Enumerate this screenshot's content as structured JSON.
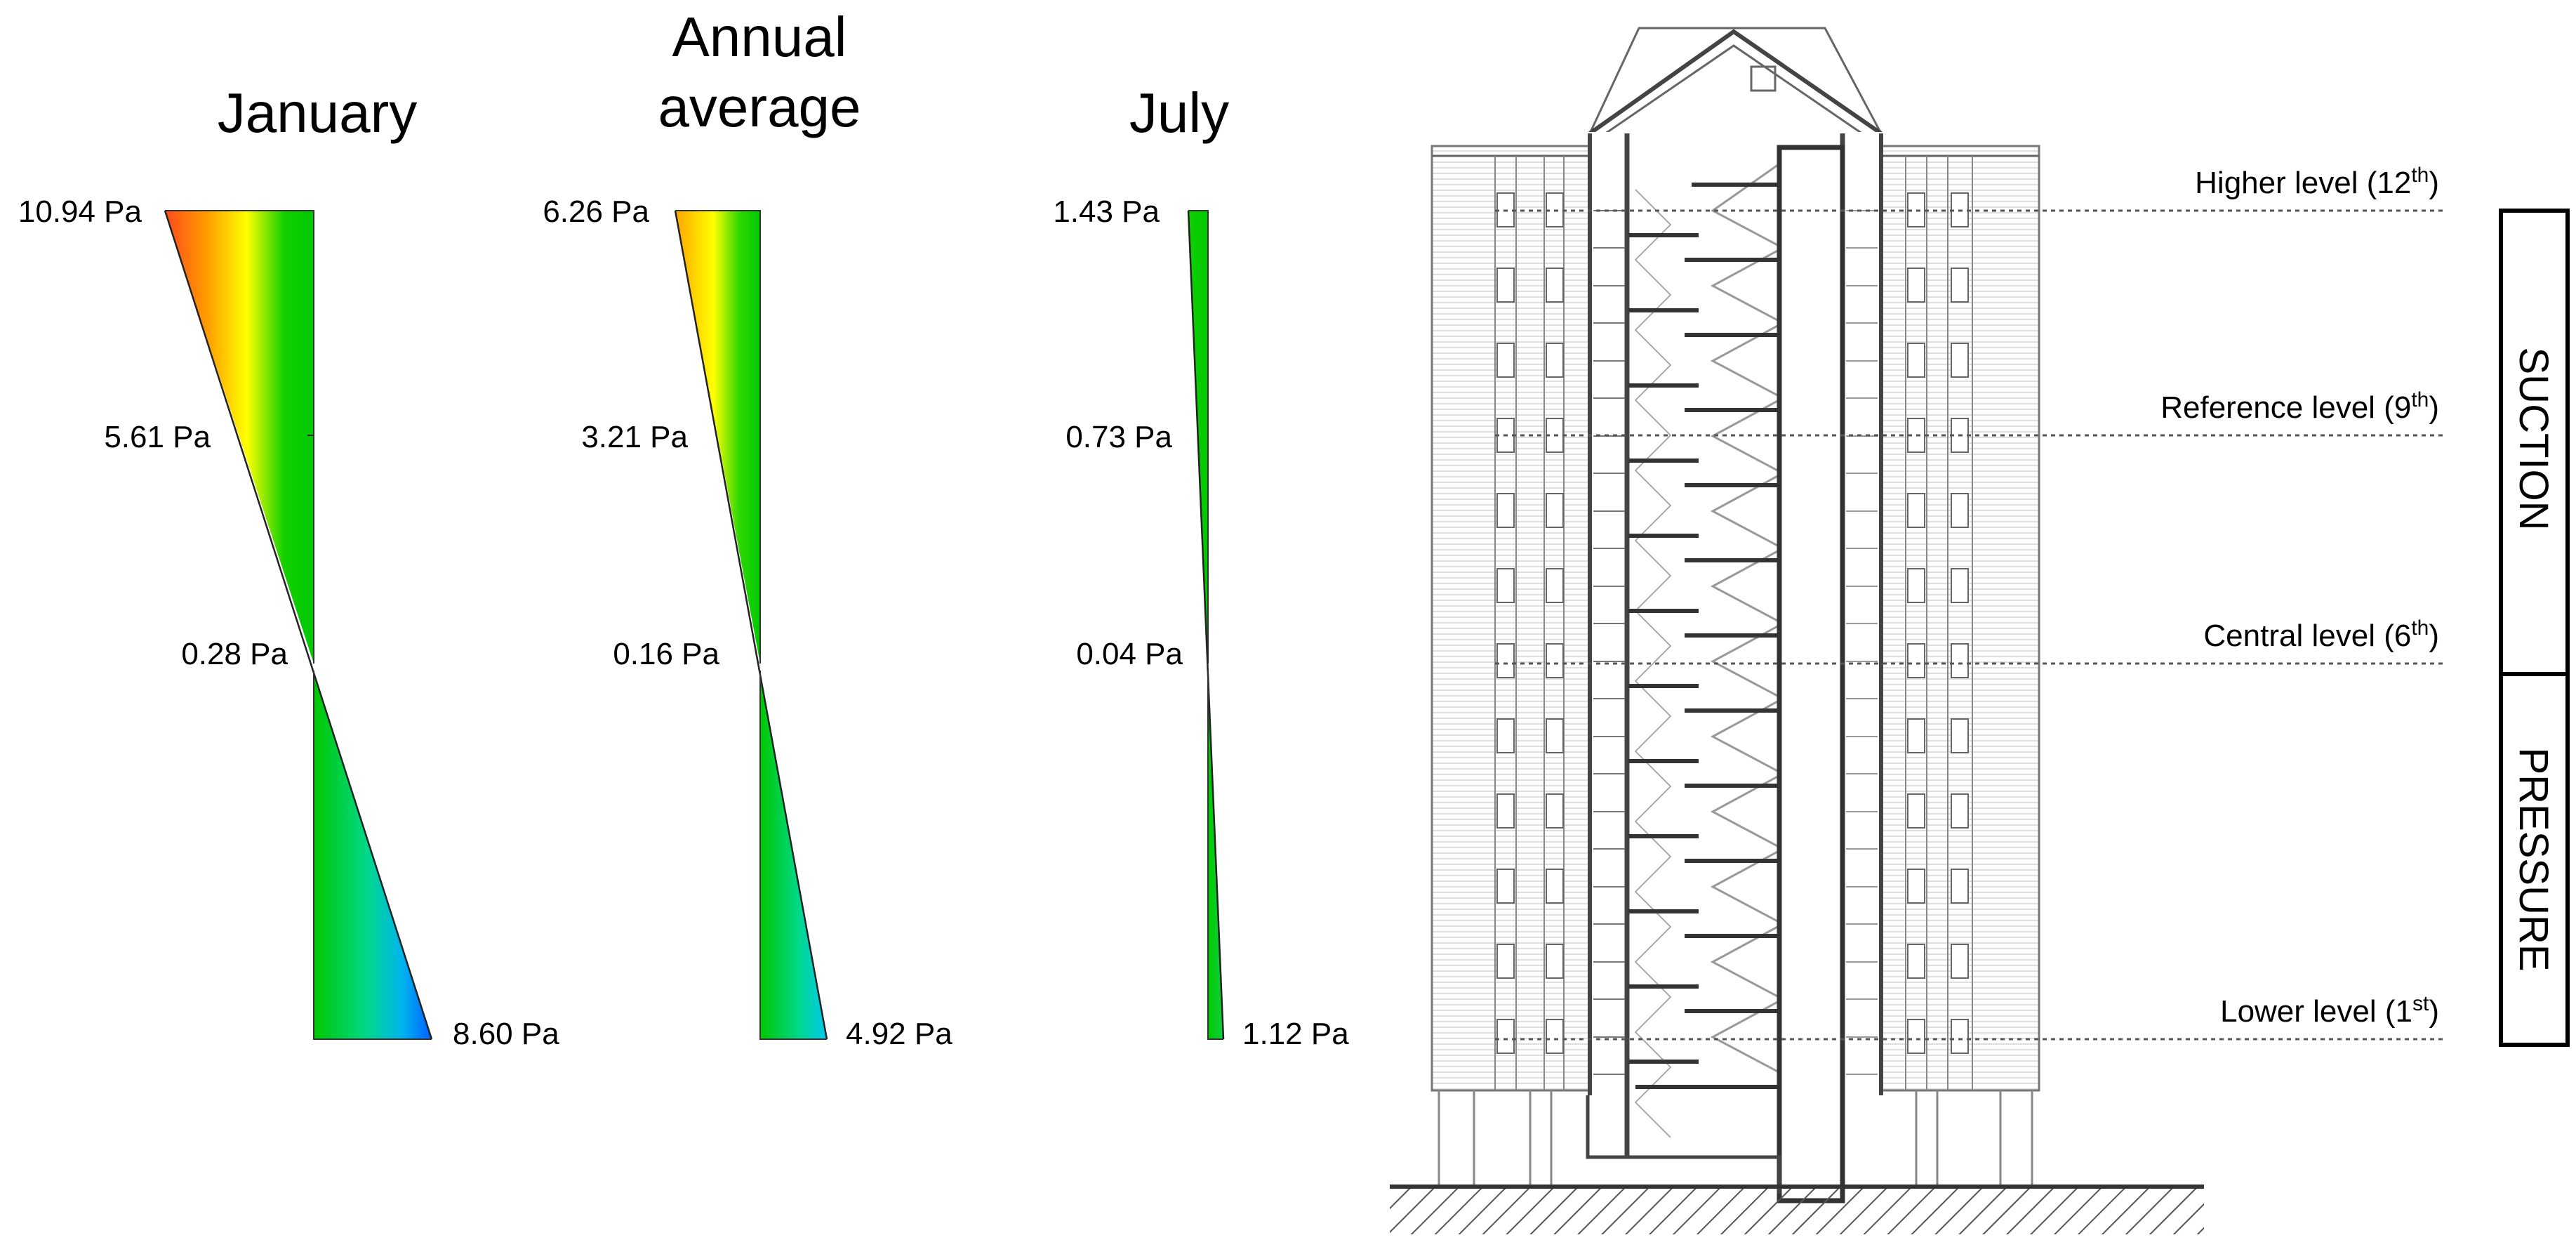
{
  "charts": [
    {
      "title": "January",
      "top": "10.94 Pa",
      "upper": "5.61 Pa",
      "center": "0.28 Pa",
      "bottom": "8.60 Pa",
      "top_value": 10.94,
      "bottom_value": 8.6
    },
    {
      "title_line1": "Annual",
      "title_line2": "average",
      "top": "6.26 Pa",
      "upper": "3.21 Pa",
      "center": "0.16 Pa",
      "bottom": "4.92 Pa",
      "top_value": 6.26,
      "bottom_value": 4.92
    },
    {
      "title": "July",
      "top": "1.43 Pa",
      "upper": "0.73 Pa",
      "center": "0.04 Pa",
      "bottom": "1.12 Pa",
      "top_value": 1.43,
      "bottom_value": 1.12
    }
  ],
  "levels": {
    "higher": {
      "label": "Higher level (12",
      "sup": "th",
      "close": ")"
    },
    "reference": {
      "label": "Reference level (9",
      "sup": "th",
      "close": ")"
    },
    "central": {
      "label": "Central level (6",
      "sup": "th",
      "close": ")"
    },
    "lower": {
      "label": "Lower level (1",
      "sup": "st",
      "close": ")"
    }
  },
  "zones": {
    "suction": "SUCTION",
    "pressure": "PRESSURE"
  },
  "colors": {
    "gradient": [
      "#ff4a1c",
      "#ffa500",
      "#ffff00",
      "#10d000",
      "#00d090",
      "#0070ff"
    ]
  }
}
